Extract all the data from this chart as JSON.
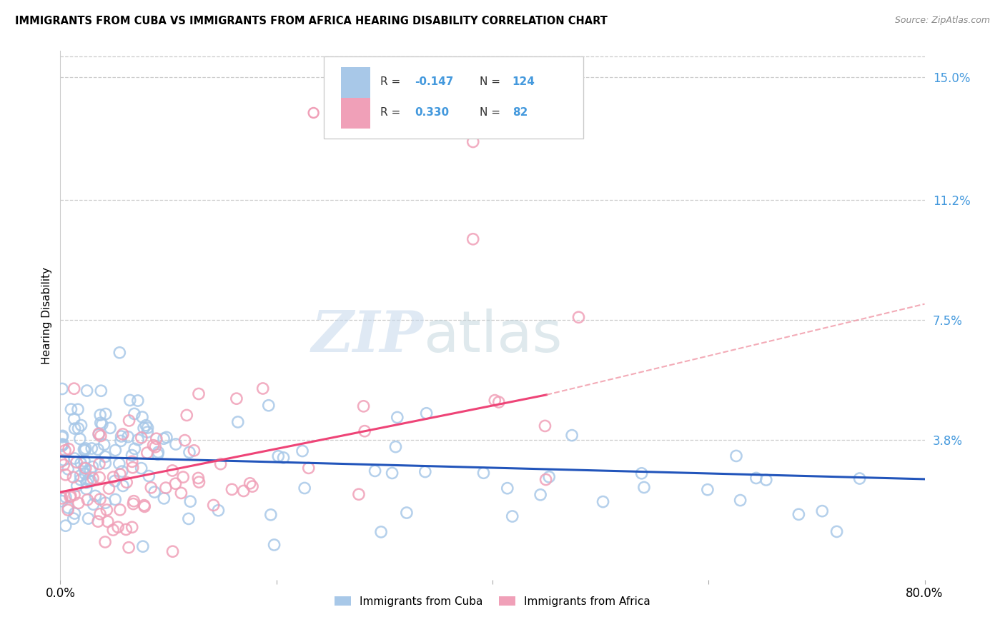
{
  "title": "IMMIGRANTS FROM CUBA VS IMMIGRANTS FROM AFRICA HEARING DISABILITY CORRELATION CHART",
  "source": "Source: ZipAtlas.com",
  "ylabel": "Hearing Disability",
  "xlim": [
    0.0,
    0.8
  ],
  "ylim": [
    -0.005,
    0.158
  ],
  "cuba_R": -0.147,
  "cuba_N": 124,
  "africa_R": 0.33,
  "africa_N": 82,
  "cuba_color": "#a8c8e8",
  "africa_color": "#f0a0b8",
  "cuba_line_color": "#2255bb",
  "africa_line_color": "#ee4477",
  "africa_dash_color": "#ee8899",
  "legend_label_cuba": "Immigrants from Cuba",
  "legend_label_africa": "Immigrants from Africa",
  "watermark_zip": "ZIP",
  "watermark_atlas": "atlas",
  "background_color": "#ffffff",
  "grid_color": "#cccccc",
  "ytick_vals": [
    0.038,
    0.075,
    0.112,
    0.15
  ],
  "ytick_labels": [
    "3.8%",
    "7.5%",
    "11.2%",
    "15.0%"
  ],
  "tick_color": "#4499dd"
}
